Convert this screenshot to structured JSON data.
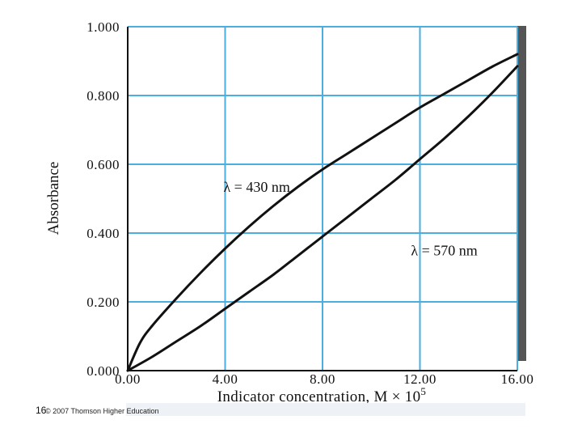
{
  "chart_data": {
    "type": "line",
    "xlabel": "Indicator concentration, M × 10",
    "xlabel_exponent": "5",
    "ylabel": "Absorbance",
    "xlim": [
      0,
      16
    ],
    "ylim": [
      0,
      1
    ],
    "x_ticks": [
      "0.00",
      "4.00",
      "8.00",
      "12.00",
      "16.00"
    ],
    "x_tick_values": [
      0,
      4,
      8,
      12,
      16
    ],
    "y_ticks": [
      "0.000",
      "0.200",
      "0.400",
      "0.600",
      "0.800",
      "1.000"
    ],
    "y_tick_values": [
      0,
      0.2,
      0.4,
      0.6,
      0.8,
      1.0
    ],
    "grid": true,
    "series": [
      {
        "name": "λ = 430 nm",
        "x": [
          0,
          0.5,
          1,
          2,
          3,
          4,
          5,
          6,
          7,
          8,
          9,
          10,
          11,
          12,
          13,
          14,
          15,
          16
        ],
        "y": [
          0,
          0.08,
          0.13,
          0.21,
          0.285,
          0.355,
          0.42,
          0.48,
          0.535,
          0.585,
          0.63,
          0.675,
          0.72,
          0.765,
          0.805,
          0.845,
          0.885,
          0.92
        ]
      },
      {
        "name": "λ = 570 nm",
        "x": [
          0,
          1,
          2,
          3,
          4,
          5,
          6,
          7,
          8,
          9,
          10,
          11,
          12,
          13,
          14,
          15,
          16
        ],
        "y": [
          0,
          0.04,
          0.085,
          0.13,
          0.18,
          0.23,
          0.28,
          0.335,
          0.39,
          0.445,
          0.5,
          0.555,
          0.615,
          0.675,
          0.74,
          0.81,
          0.885
        ]
      }
    ],
    "annotations": [
      {
        "text": "λ = 430 nm",
        "x": 5.3,
        "y": 0.52
      },
      {
        "text": "λ = 570 nm",
        "x": 13.0,
        "y": 0.335
      }
    ],
    "line_color": "#111111",
    "grid_color": "#4aaee0"
  },
  "footer": {
    "slide_number": "16",
    "copyright": "© 2007 Thomson Higher Education"
  }
}
